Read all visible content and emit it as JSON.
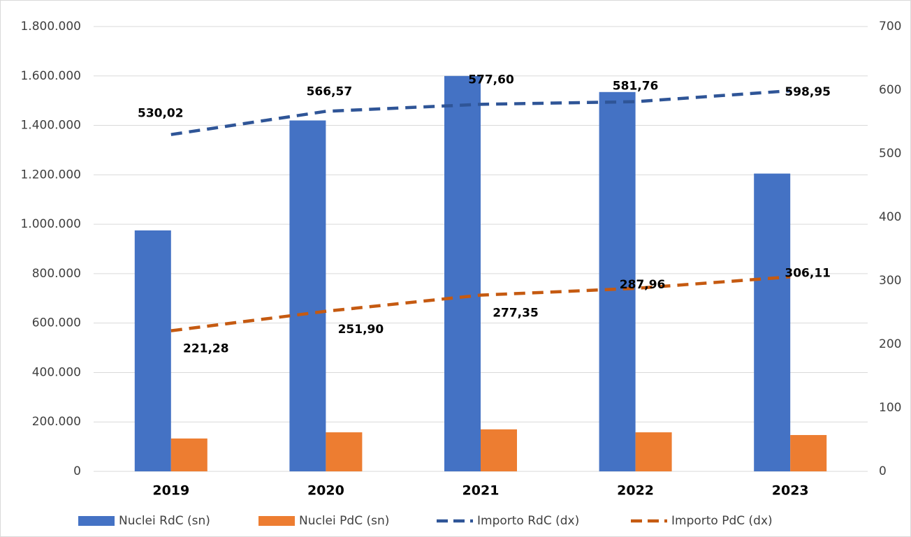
{
  "chart_data": {
    "type": "bar",
    "categories": [
      "2019",
      "2020",
      "2021",
      "2022",
      "2023"
    ],
    "series": [
      {
        "name": "Nuclei RdC (sn)",
        "type": "bar",
        "color": "#4472c4",
        "values": [
          975000,
          1420000,
          1600000,
          1535000,
          1205000
        ]
      },
      {
        "name": "Nuclei PdC (sn)",
        "type": "bar",
        "color": "#ed7d31",
        "values": [
          133000,
          158000,
          170000,
          158000,
          147000
        ]
      },
      {
        "name": "Importo RdC (dx)",
        "type": "line",
        "axis": "y2",
        "color": "#2f5597",
        "dashed": true,
        "values": [
          530.02,
          566.57,
          577.6,
          581.76,
          598.95
        ],
        "value_labels": [
          "530,02",
          "566,57",
          "577,60",
          "581,76",
          "598,95"
        ]
      },
      {
        "name": "Importo PdC (dx)",
        "type": "line",
        "axis": "y2",
        "color": "#c55a11",
        "dashed": true,
        "values": [
          221.28,
          251.9,
          277.35,
          287.96,
          306.11
        ],
        "value_labels": [
          "221,28",
          "251,90",
          "277,35",
          "287,96",
          "306,11"
        ]
      }
    ],
    "ylim": [
      0,
      1800000
    ],
    "yticks": [
      0,
      {
        "value": 200000,
        "label": "200.000"
      },
      {
        "value": 400000,
        "label": "400.000"
      },
      {
        "value": 600000,
        "label": "600.000"
      },
      {
        "value": 800000,
        "label": "800.000"
      },
      {
        "value": 1000000,
        "label": "1.000.000"
      },
      {
        "value": 1200000,
        "label": "1.200.000"
      },
      {
        "value": 1400000,
        "label": "1.400.000"
      },
      {
        "value": 1600000,
        "label": "1.600.000"
      },
      {
        "value": 1800000,
        "label": "1.800.000"
      }
    ],
    "y2lim": [
      0,
      700
    ],
    "y2ticks": [
      0,
      100,
      200,
      300,
      400,
      500,
      600,
      700
    ],
    "grid": true,
    "legend": "bottom"
  }
}
